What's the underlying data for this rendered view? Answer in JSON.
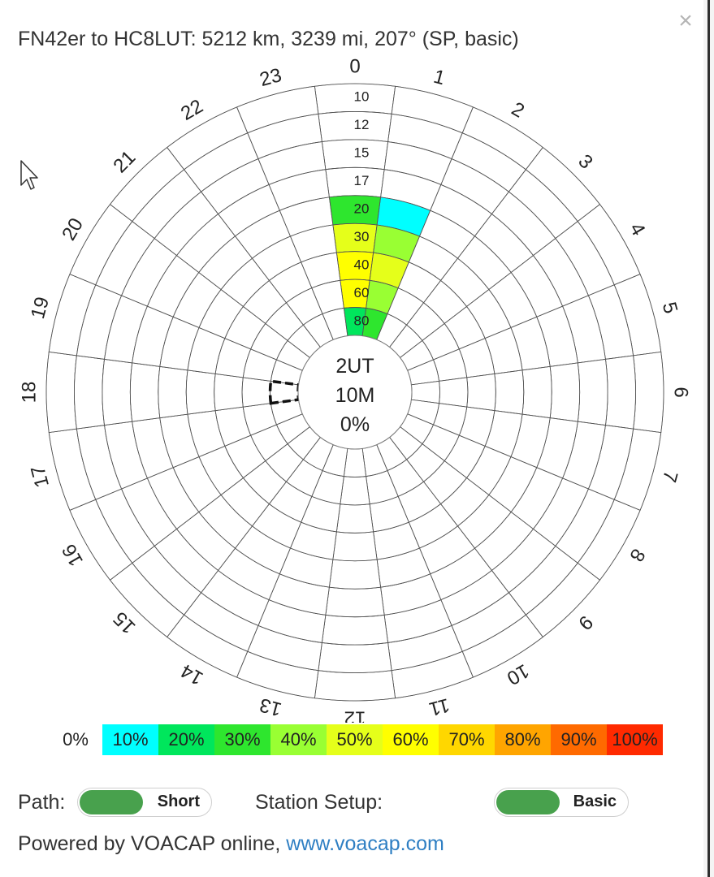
{
  "dialog": {
    "title": "FN42er to HC8LUT: 5212 km, 3239 mi, 207° (SP, basic)",
    "close_icon": "×"
  },
  "chart_data": {
    "type": "polar-heatmap",
    "hours_labels": [
      "0",
      "1",
      "2",
      "3",
      "4",
      "5",
      "6",
      "7",
      "8",
      "9",
      "10",
      "11",
      "12",
      "13",
      "14",
      "15",
      "16",
      "17",
      "18",
      "19",
      "20",
      "21",
      "22",
      "23"
    ],
    "rings_mhz": [
      "10",
      "12",
      "15",
      "17",
      "20",
      "30",
      "40",
      "60",
      "80"
    ],
    "center": {
      "time": "2UT",
      "band": "10M",
      "reliability": "0%"
    },
    "highlight": {
      "hour": 18,
      "ring_mhz": "80"
    },
    "reliability_percent_by_hour": [
      [
        0,
        0,
        0,
        0,
        30,
        50,
        60,
        60,
        20
      ],
      [
        0,
        0,
        0,
        0,
        10,
        40,
        50,
        40,
        30
      ],
      [
        0,
        0,
        0,
        0,
        0,
        0,
        0,
        0,
        0
      ],
      [
        0,
        0,
        0,
        0,
        0,
        0,
        0,
        0,
        0
      ],
      [
        0,
        0,
        0,
        0,
        0,
        0,
        0,
        0,
        0
      ],
      [
        0,
        0,
        0,
        0,
        0,
        0,
        0,
        0,
        0
      ],
      [
        0,
        0,
        0,
        0,
        0,
        0,
        0,
        0,
        0
      ],
      [
        0,
        0,
        0,
        0,
        0,
        0,
        0,
        0,
        0
      ],
      [
        0,
        0,
        0,
        0,
        0,
        0,
        0,
        0,
        0
      ],
      [
        0,
        0,
        0,
        0,
        0,
        0,
        0,
        0,
        0
      ],
      [
        0,
        0,
        0,
        0,
        0,
        0,
        0,
        0,
        0
      ],
      [
        0,
        0,
        0,
        0,
        0,
        0,
        0,
        0,
        0
      ],
      [
        0,
        0,
        0,
        0,
        0,
        0,
        0,
        0,
        0
      ],
      [
        0,
        0,
        0,
        0,
        0,
        0,
        0,
        0,
        0
      ],
      [
        0,
        0,
        0,
        0,
        0,
        0,
        0,
        0,
        0
      ],
      [
        0,
        0,
        0,
        0,
        0,
        0,
        0,
        0,
        0
      ],
      [
        0,
        0,
        0,
        0,
        0,
        0,
        0,
        0,
        0
      ],
      [
        0,
        0,
        0,
        0,
        0,
        0,
        0,
        0,
        0
      ],
      [
        0,
        0,
        0,
        0,
        0,
        0,
        0,
        0,
        0
      ],
      [
        0,
        0,
        0,
        0,
        0,
        0,
        0,
        0,
        0
      ],
      [
        0,
        0,
        0,
        0,
        0,
        0,
        0,
        0,
        0
      ],
      [
        0,
        0,
        0,
        0,
        0,
        0,
        0,
        0,
        0
      ],
      [
        0,
        0,
        0,
        0,
        0,
        0,
        0,
        0,
        0
      ],
      [
        0,
        0,
        0,
        0,
        0,
        0,
        0,
        0,
        0
      ]
    ]
  },
  "legend": [
    {
      "label": "0%",
      "color": "#ffffff"
    },
    {
      "label": "10%",
      "color": "#00ffff"
    },
    {
      "label": "20%",
      "color": "#00e65c"
    },
    {
      "label": "30%",
      "color": "#2ee62e"
    },
    {
      "label": "40%",
      "color": "#99ff33"
    },
    {
      "label": "50%",
      "color": "#e5ff1a"
    },
    {
      "label": "60%",
      "color": "#ffff00"
    },
    {
      "label": "70%",
      "color": "#ffd700"
    },
    {
      "label": "80%",
      "color": "#ffa500"
    },
    {
      "label": "90%",
      "color": "#ff6a00"
    },
    {
      "label": "100%",
      "color": "#ff2a00"
    }
  ],
  "controls": {
    "path_label": "Path:",
    "path_value": "Short",
    "setup_label": "Station Setup:",
    "setup_value": "Basic"
  },
  "footer": {
    "text": "Powered by VOACAP online, ",
    "link": "www.voacap.com"
  }
}
